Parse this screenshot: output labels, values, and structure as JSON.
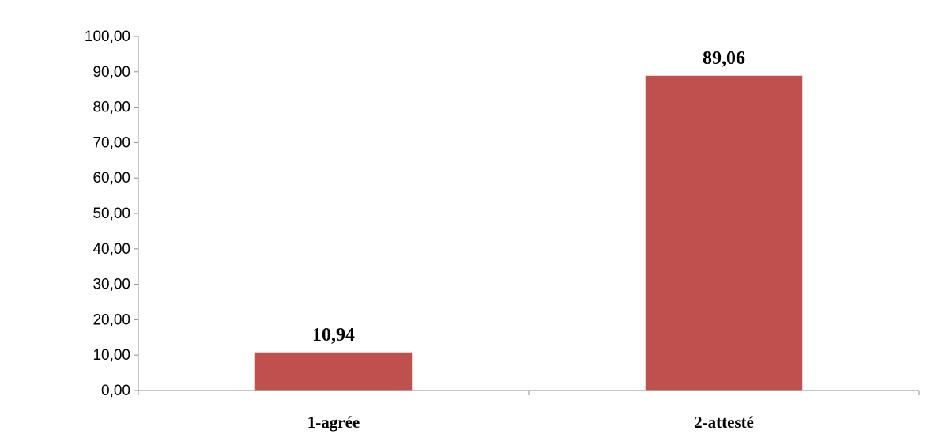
{
  "chart_data": {
    "type": "bar",
    "categories": [
      "1-agrée",
      "2-attesté"
    ],
    "values": [
      10.94,
      89.06
    ],
    "value_labels": [
      "10,94",
      "89,06"
    ],
    "ylim": [
      0,
      100
    ],
    "yticks": [
      "0,00",
      "10,00",
      "20,00",
      "30,00",
      "40,00",
      "50,00",
      "60,00",
      "70,00",
      "80,00",
      "90,00",
      "100,00"
    ],
    "title": "",
    "xlabel": "",
    "ylabel": "",
    "grid": false,
    "legend": "none",
    "bar_color": "#c0504d"
  }
}
